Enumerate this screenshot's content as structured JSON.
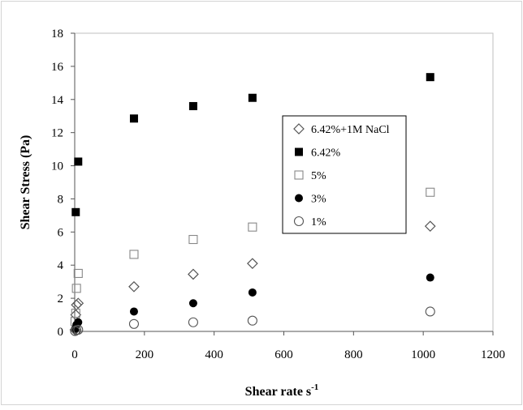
{
  "chart_data": {
    "type": "scatter",
    "title": "",
    "xlabel": "Shear rate s",
    "xlabel_superscript": "-1",
    "ylabel": "Shear Stress (Pa)",
    "xlim": [
      0,
      1200
    ],
    "ylim": [
      0,
      18
    ],
    "xticks": [
      0,
      200,
      400,
      600,
      800,
      1000,
      1200
    ],
    "yticks": [
      0,
      2,
      4,
      6,
      8,
      10,
      12,
      14,
      16,
      18
    ],
    "grid": false,
    "legend_position": "right-middle",
    "series": [
      {
        "name": "6.42%+1M NaCl",
        "marker": "diamond-open",
        "color": "#555555",
        "points": [
          [
            1,
            0.1
          ],
          [
            3,
            1.0
          ],
          [
            5,
            1.6
          ],
          [
            10,
            1.7
          ],
          [
            170,
            2.7
          ],
          [
            340,
            3.45
          ],
          [
            510,
            4.1
          ],
          [
            1020,
            6.35
          ]
        ]
      },
      {
        "name": "6.42%",
        "marker": "square-filled",
        "color": "#000000",
        "points": [
          [
            3,
            7.2
          ],
          [
            10,
            10.25
          ],
          [
            170,
            12.85
          ],
          [
            340,
            13.6
          ],
          [
            510,
            14.1
          ],
          [
            1020,
            15.35
          ]
        ]
      },
      {
        "name": "5%",
        "marker": "square-open",
        "color": "#888888",
        "points": [
          [
            1,
            0.6
          ],
          [
            3,
            1.1
          ],
          [
            5,
            2.6
          ],
          [
            10,
            3.5
          ],
          [
            170,
            4.65
          ],
          [
            340,
            5.55
          ],
          [
            510,
            6.3
          ],
          [
            1020,
            8.4
          ]
        ]
      },
      {
        "name": "3%",
        "marker": "circle-filled",
        "color": "#000000",
        "points": [
          [
            1,
            0.15
          ],
          [
            5,
            0.4
          ],
          [
            10,
            0.55
          ],
          [
            170,
            1.2
          ],
          [
            340,
            1.7
          ],
          [
            510,
            2.35
          ],
          [
            1020,
            3.25
          ]
        ]
      },
      {
        "name": "1%",
        "marker": "circle-open",
        "color": "#555555",
        "points": [
          [
            1,
            0.02
          ],
          [
            5,
            0.08
          ],
          [
            10,
            0.1
          ],
          [
            170,
            0.45
          ],
          [
            340,
            0.55
          ],
          [
            510,
            0.65
          ],
          [
            1020,
            1.2
          ]
        ]
      }
    ]
  }
}
